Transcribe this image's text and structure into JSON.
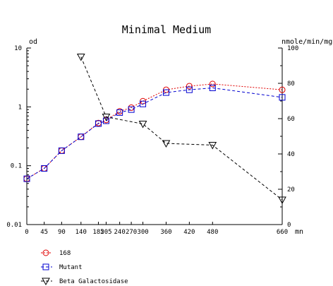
{
  "chart_data": {
    "type": "line",
    "title": "Minimal Medium",
    "left_axis_label": "od",
    "right_axis_label": "nmole/min/mg",
    "x_unit_label": "mn",
    "x_tick_labels": [
      "0",
      "45",
      "90",
      "140",
      "185",
      "205",
      "240",
      "270",
      "300",
      "360",
      "420",
      "480",
      "660"
    ],
    "x_ticks": [
      0,
      45,
      90,
      140,
      185,
      205,
      240,
      270,
      300,
      360,
      420,
      480,
      660
    ],
    "x_range": [
      0,
      660
    ],
    "left_scale": "log",
    "left_range": [
      0.01,
      10
    ],
    "left_tick_labels": [
      "0.01",
      "0.1",
      "1",
      "10"
    ],
    "right_range": [
      0,
      100
    ],
    "right_tick_labels": [
      "0",
      "20",
      "40",
      "60",
      "80",
      "100"
    ],
    "grid": false,
    "legend_position": "bottom-left",
    "series": [
      {
        "name": "168",
        "axis": "left",
        "color": "#e00000",
        "marker": "circle",
        "line": "dotted",
        "points": [
          [
            0,
            0.06
          ],
          [
            45,
            0.09
          ],
          [
            90,
            0.18
          ],
          [
            140,
            0.31
          ],
          [
            185,
            0.53
          ],
          [
            205,
            0.6
          ],
          [
            240,
            0.84
          ],
          [
            270,
            0.97
          ],
          [
            300,
            1.25
          ],
          [
            360,
            1.95
          ],
          [
            420,
            2.25
          ],
          [
            480,
            2.45
          ],
          [
            660,
            1.95
          ]
        ]
      },
      {
        "name": "Mutant",
        "axis": "left",
        "color": "#0000d0",
        "marker": "square",
        "line": "dashed",
        "points": [
          [
            0,
            0.06
          ],
          [
            45,
            0.09
          ],
          [
            90,
            0.18
          ],
          [
            140,
            0.31
          ],
          [
            185,
            0.52
          ],
          [
            205,
            0.58
          ],
          [
            240,
            0.8
          ],
          [
            270,
            0.9
          ],
          [
            300,
            1.12
          ],
          [
            360,
            1.75
          ],
          [
            420,
            1.95
          ],
          [
            480,
            2.1
          ],
          [
            660,
            1.45
          ]
        ]
      },
      {
        "name": "Beta Galactosidase",
        "axis": "right",
        "color": "#000000",
        "marker": "triangle-down",
        "line": "dashed",
        "points": [
          [
            140,
            95
          ],
          [
            205,
            61
          ],
          [
            300,
            57
          ],
          [
            360,
            46
          ],
          [
            480,
            45
          ],
          [
            660,
            14
          ]
        ]
      }
    ]
  }
}
